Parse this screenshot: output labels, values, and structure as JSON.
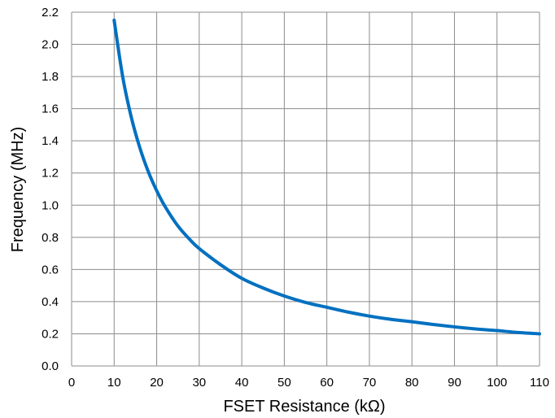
{
  "chart_data": {
    "type": "line",
    "title": "",
    "xlabel": "FSET Resistance (kΩ)",
    "ylabel": "Frequency (MHz)",
    "xlim": [
      0,
      110
    ],
    "ylim": [
      0,
      2.2
    ],
    "x_ticks": [
      "0",
      "10",
      "20",
      "30",
      "40",
      "50",
      "60",
      "70",
      "80",
      "90",
      "100",
      "110"
    ],
    "y_ticks": [
      "0.0",
      "0.2",
      "0.4",
      "0.6",
      "0.8",
      "1.0",
      "1.2",
      "1.4",
      "1.6",
      "1.8",
      "2.0",
      "2.2"
    ],
    "grid": true,
    "legend": "none",
    "series_color": "#0070C0",
    "series": [
      {
        "x": [
          10,
          12,
          14,
          16,
          18,
          20,
          22,
          25,
          28,
          30,
          35,
          40,
          45,
          50,
          55,
          60,
          65,
          70,
          75,
          80,
          85,
          90,
          95,
          100,
          105,
          110
        ],
        "y": [
          2.15,
          1.8,
          1.55,
          1.36,
          1.21,
          1.09,
          0.99,
          0.87,
          0.78,
          0.73,
          0.63,
          0.545,
          0.485,
          0.435,
          0.395,
          0.365,
          0.335,
          0.31,
          0.29,
          0.275,
          0.258,
          0.243,
          0.23,
          0.22,
          0.208,
          0.2
        ]
      }
    ]
  }
}
